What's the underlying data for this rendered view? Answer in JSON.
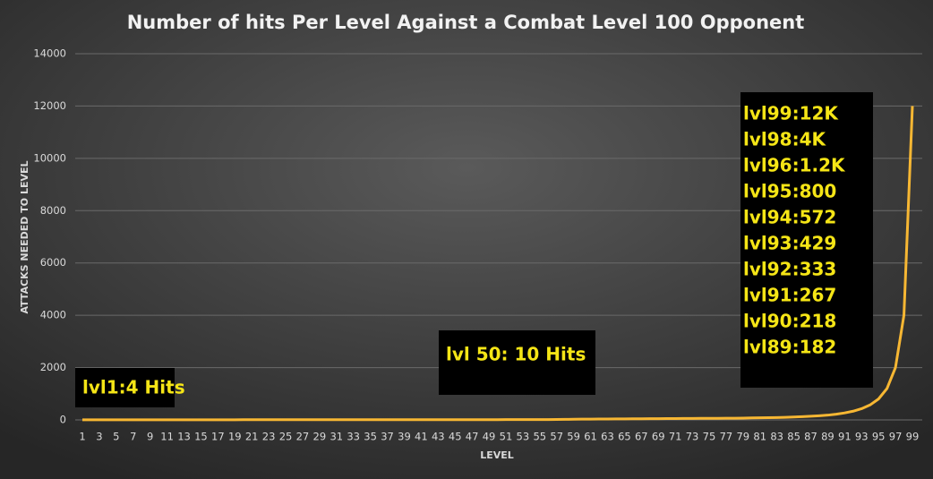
{
  "chart_data": {
    "type": "line",
    "title": "Number of hits Per Level Against a Combat Level 100 Opponent",
    "x_label": "LEVEL",
    "y_label": "ATTACKS NEEDED TO LEVEL",
    "categories": [
      1,
      null,
      3,
      null,
      5,
      null,
      7,
      null,
      9,
      null,
      11,
      null,
      13,
      null,
      15,
      null,
      17,
      null,
      19,
      null,
      21,
      null,
      23,
      null,
      25,
      null,
      27,
      null,
      29,
      null,
      31,
      null,
      33,
      null,
      35,
      null,
      37,
      null,
      39,
      null,
      41,
      null,
      43,
      null,
      45,
      null,
      47,
      null,
      49,
      null,
      51,
      null,
      53,
      null,
      55,
      null,
      57,
      null,
      59,
      null,
      61,
      null,
      63,
      null,
      65,
      null,
      67,
      null,
      69,
      null,
      71,
      null,
      73,
      null,
      75,
      null,
      77,
      null,
      79,
      null,
      81,
      null,
      83,
      null,
      85,
      null,
      87,
      null,
      89,
      null,
      91,
      null,
      93,
      null,
      95,
      null,
      97,
      null,
      99
    ],
    "series": [
      {
        "name": "Attacks",
        "color": "#f7b733",
        "values": [
          4,
          4,
          4,
          4,
          5,
          5,
          5,
          5,
          5,
          5,
          5,
          5,
          6,
          6,
          6,
          6,
          6,
          6,
          6,
          7,
          7,
          7,
          7,
          7,
          7,
          7,
          8,
          8,
          8,
          8,
          8,
          8,
          8,
          8,
          9,
          9,
          9,
          9,
          9,
          9,
          9,
          9,
          9,
          10,
          10,
          10,
          10,
          10,
          10,
          10,
          11,
          11,
          12,
          12,
          13,
          14,
          15,
          20,
          25,
          30,
          32,
          34,
          36,
          38,
          40,
          42,
          44,
          46,
          48,
          50,
          52,
          54,
          56,
          58,
          60,
          62,
          64,
          66,
          70,
          75,
          80,
          85,
          90,
          100,
          110,
          125,
          140,
          160,
          182,
          218,
          267,
          333,
          429,
          572,
          800,
          1200,
          2000,
          4000,
          12000
        ]
      }
    ],
    "ylim": [
      0,
      14000
    ],
    "yticks": [
      0,
      2000,
      4000,
      6000,
      8000,
      10000,
      12000,
      14000
    ],
    "grid": true,
    "annotations": [
      [
        "lvl1:4 Hits"
      ],
      [
        "lvl 50: 10 Hits"
      ],
      [
        "lvl99:12K",
        "lvl98:4K",
        "lvl96:1.2K",
        "lvl95:800",
        "lvl94:572",
        "lvl93:429",
        "lvl92:333",
        "lvl91:267",
        "lvl90:218",
        "lvl89:182"
      ]
    ]
  }
}
